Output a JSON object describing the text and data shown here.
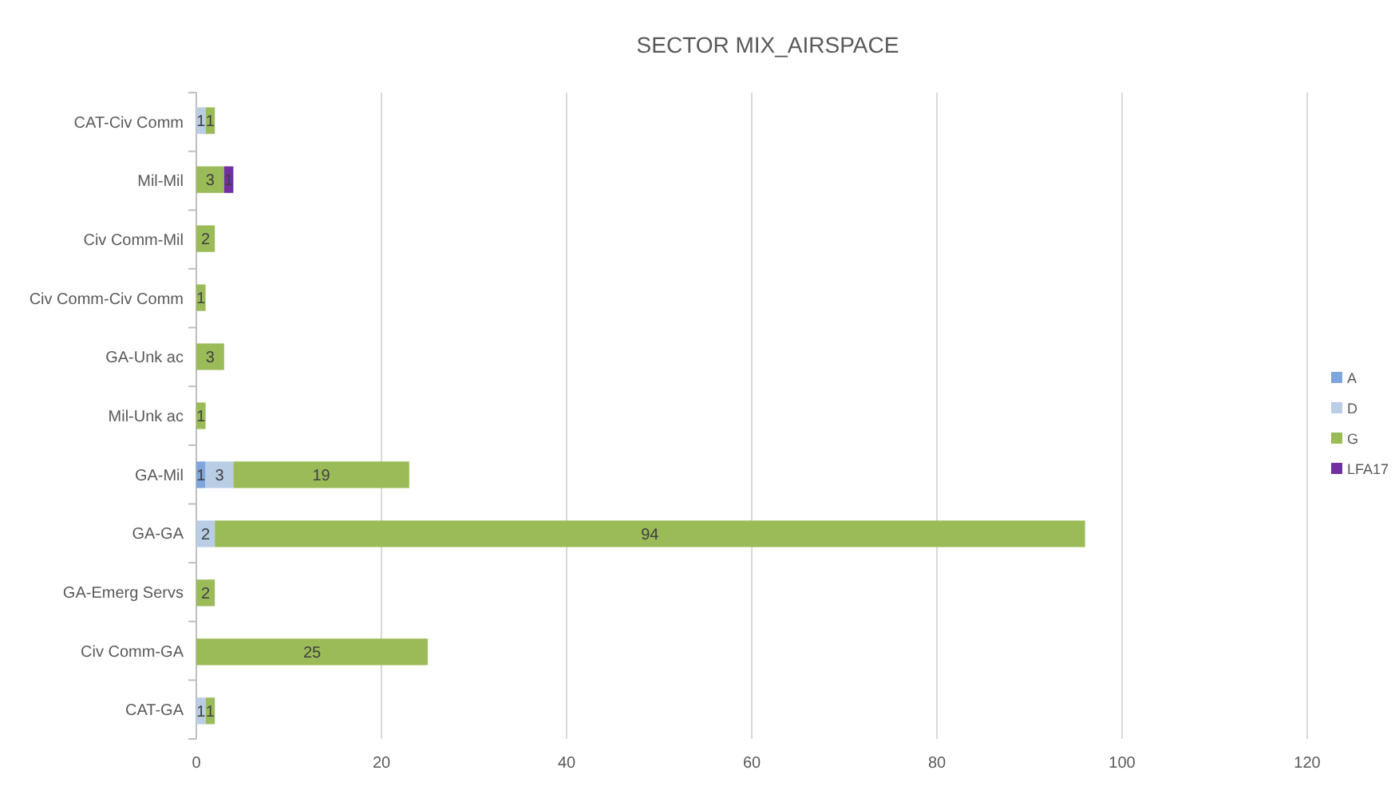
{
  "chart_data": {
    "type": "bar",
    "orientation": "horizontal",
    "stacked": true,
    "title": "SECTOR MIX_AIRSPACE",
    "categories": [
      "CAT-Civ Comm",
      "Mil-Mil",
      "Civ Comm-Mil",
      "Civ Comm-Civ Comm",
      "GA-Unk ac",
      "Mil-Unk ac",
      "GA-Mil",
      "GA-GA",
      "GA-Emerg Servs",
      "Civ Comm-GA",
      "CAT-GA"
    ],
    "series": [
      {
        "name": "A",
        "color": "#7ea6dc",
        "values": [
          null,
          null,
          null,
          null,
          null,
          null,
          1,
          null,
          null,
          null,
          null
        ]
      },
      {
        "name": "D",
        "color": "#b9cde5",
        "values": [
          1,
          null,
          null,
          null,
          null,
          null,
          3,
          2,
          null,
          null,
          1
        ]
      },
      {
        "name": "G",
        "color": "#9bbb59",
        "values": [
          1,
          3,
          2,
          1,
          3,
          1,
          19,
          94,
          2,
          25,
          1
        ]
      },
      {
        "name": "LFA17",
        "color": "#7030a0",
        "values": [
          null,
          1,
          null,
          null,
          null,
          null,
          null,
          null,
          null,
          null,
          null
        ]
      }
    ],
    "xlim": [
      0,
      120
    ],
    "xticks": [
      0,
      20,
      40,
      60,
      80,
      100,
      120
    ],
    "grid": "x",
    "legend": "right",
    "data_labels": true
  }
}
